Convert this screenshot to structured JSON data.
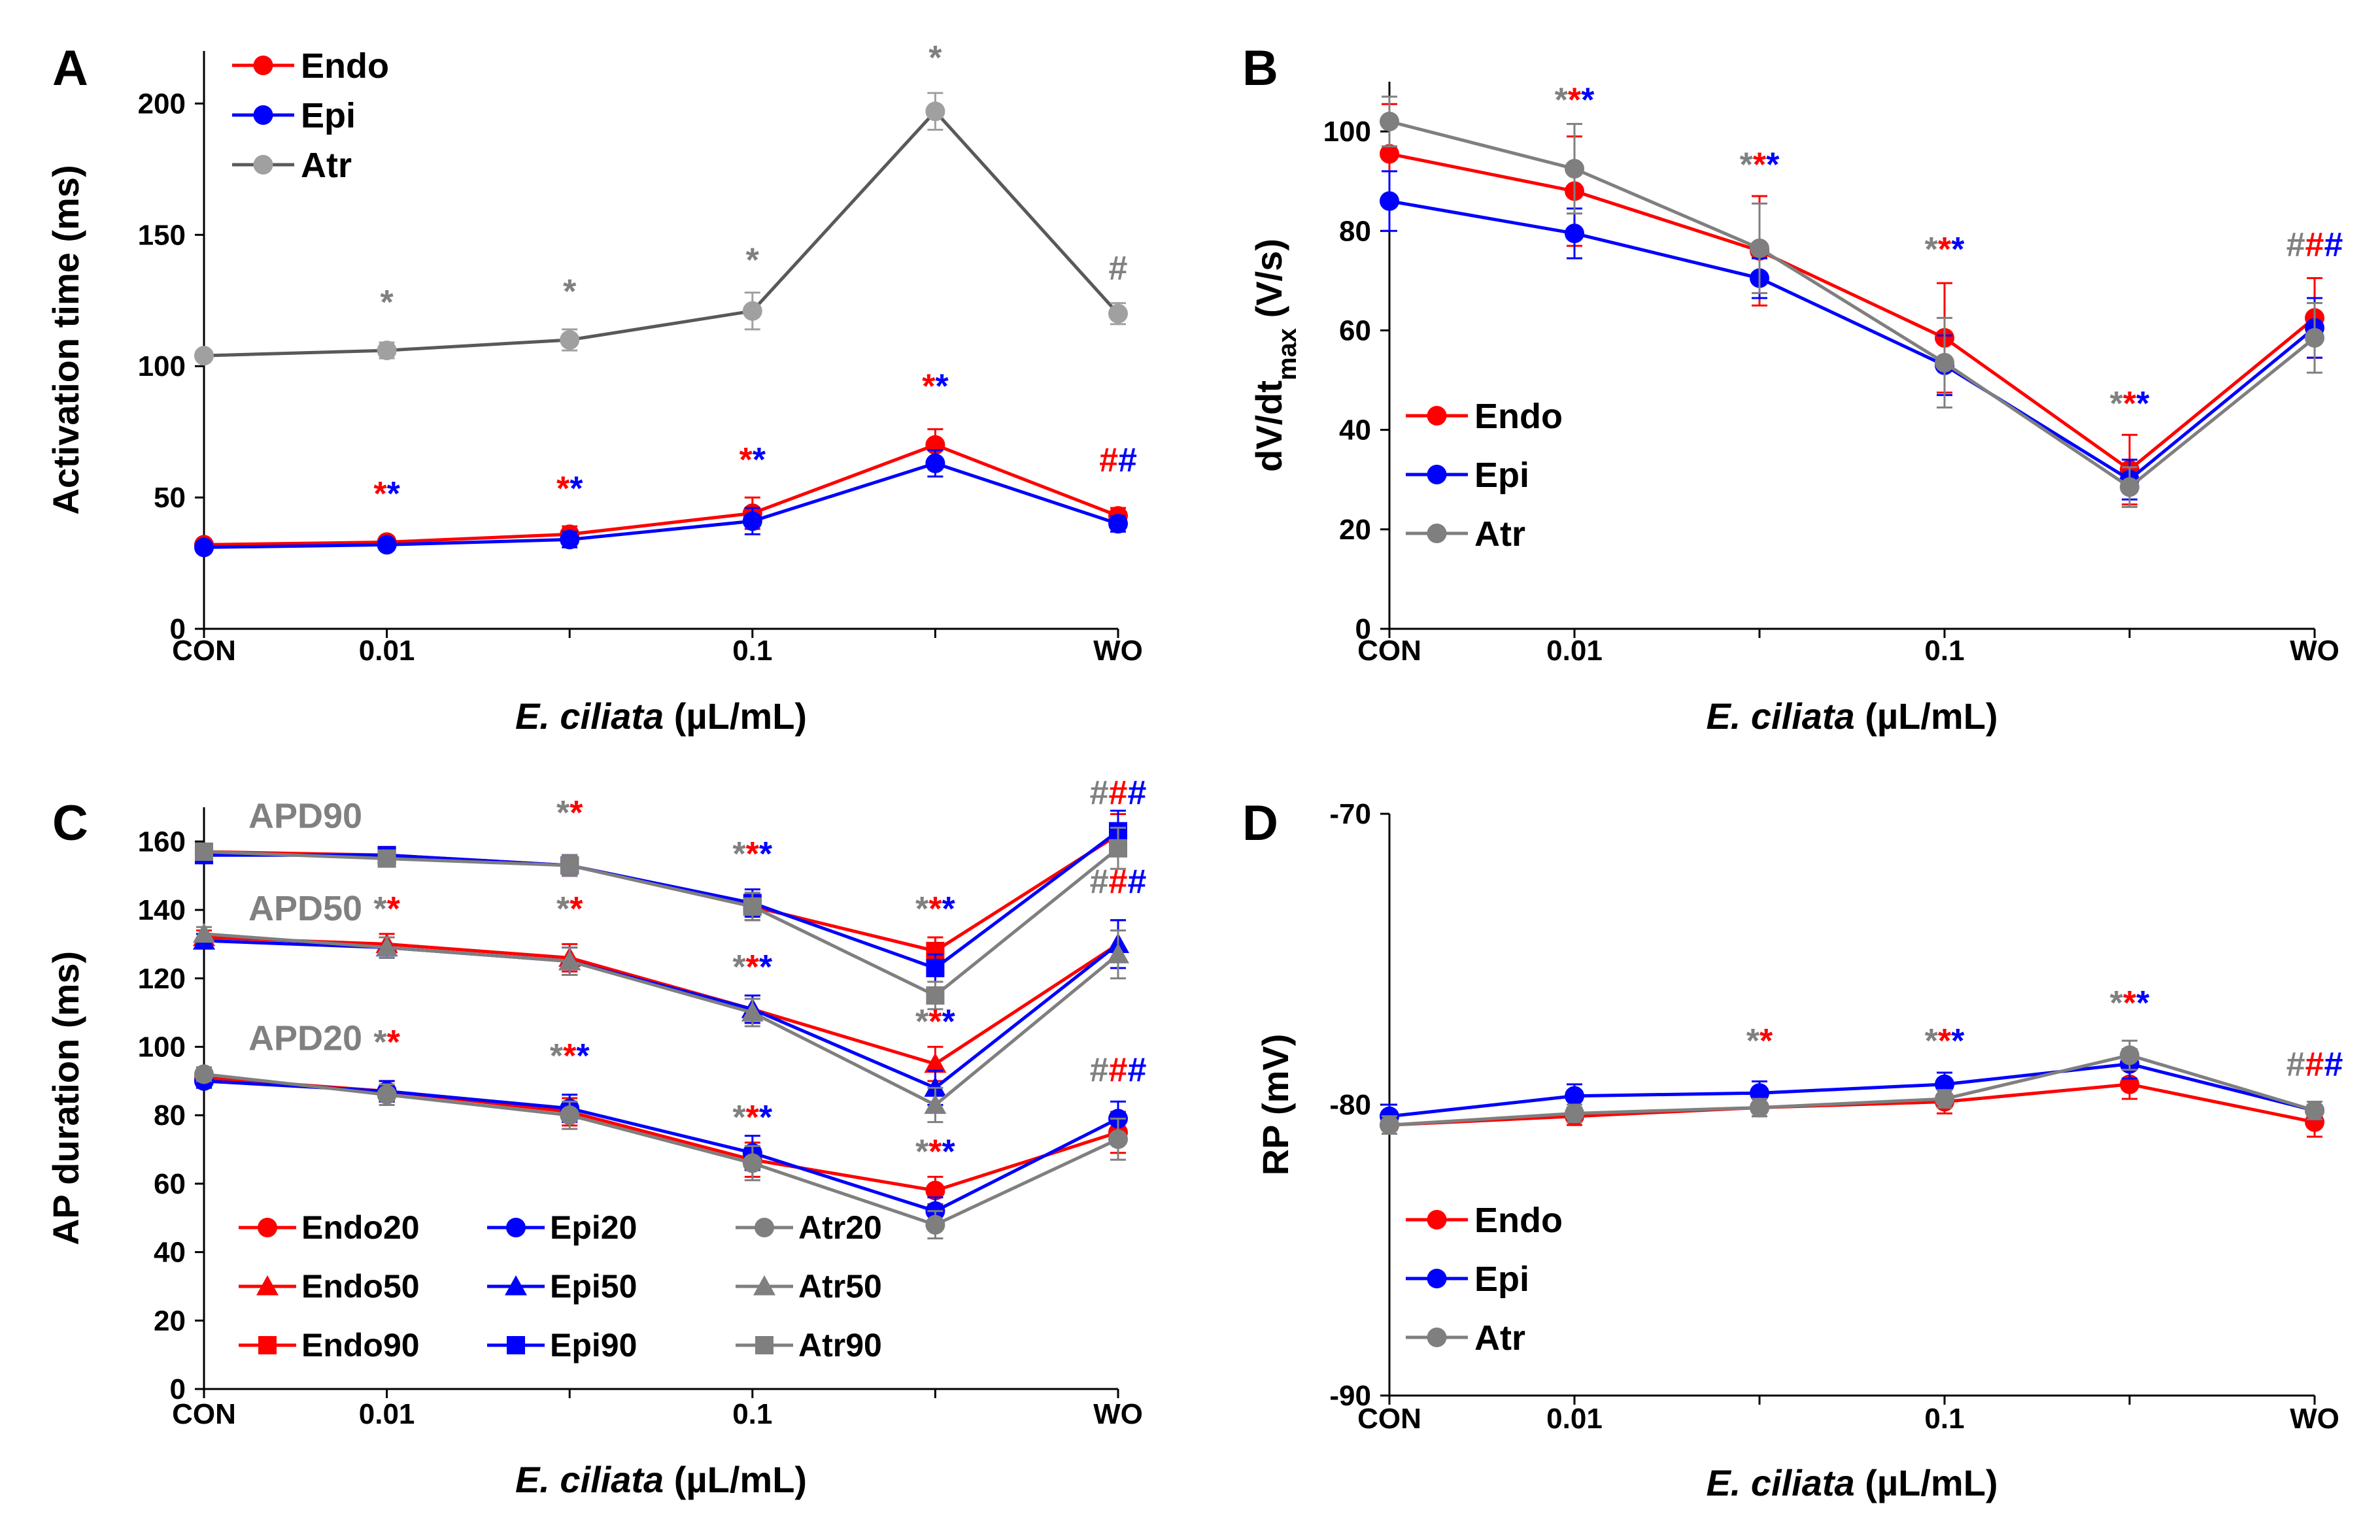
{
  "colors": {
    "endo": "#ff0000",
    "epi": "#0000ff",
    "atr_a": "#a0a0a0",
    "atr": "#7f7f7f",
    "axis": "#000000"
  },
  "chart_data": [
    {
      "panel": "A",
      "type": "line",
      "categories": [
        "CON",
        "0.01",
        "",
        "0.1",
        "",
        "WO"
      ],
      "xlabel_italic": "E. ciliata",
      "xlabel_rest": " (µL/mL)",
      "ylabel": "Activation time (ms)",
      "ylim": [
        0,
        220
      ],
      "yticks": [
        "0",
        "50",
        "100",
        "150",
        "200"
      ],
      "legend_position": "top-left",
      "series": [
        {
          "name": "Endo",
          "color": "#ff0000",
          "marker": "circle",
          "values": [
            32,
            33,
            36,
            44,
            70,
            43
          ],
          "errors": [
            2,
            2,
            3,
            6,
            6,
            3
          ]
        },
        {
          "name": "Epi",
          "color": "#0000ff",
          "marker": "circle",
          "values": [
            31,
            32,
            34,
            41,
            63,
            40
          ],
          "errors": [
            2,
            2,
            3,
            5,
            5,
            3
          ]
        },
        {
          "name": "Atr",
          "color": "#a0a0a0",
          "line_color": "#595959",
          "marker": "circle",
          "values": [
            104,
            106,
            110,
            121,
            197,
            120
          ],
          "errors": [
            2,
            3,
            4,
            7,
            7,
            4
          ]
        }
      ],
      "annotations": [
        {
          "x": 1,
          "y": 120,
          "parts": [
            {
              "text": "*",
              "color": "#808080"
            }
          ]
        },
        {
          "x": 2,
          "y": 124,
          "parts": [
            {
              "text": "*",
              "color": "#808080"
            }
          ]
        },
        {
          "x": 3,
          "y": 136,
          "parts": [
            {
              "text": "*",
              "color": "#808080"
            }
          ]
        },
        {
          "x": 4,
          "y": 213,
          "parts": [
            {
              "text": "*",
              "color": "#808080"
            }
          ]
        },
        {
          "x": 5,
          "y": 133,
          "parts": [
            {
              "text": "#",
              "color": "#808080"
            }
          ]
        },
        {
          "x": 1,
          "y": 47,
          "parts": [
            {
              "text": "*",
              "color": "#ff0000"
            },
            {
              "text": "*",
              "color": "#0000ff"
            }
          ]
        },
        {
          "x": 2,
          "y": 49,
          "parts": [
            {
              "text": "*",
              "color": "#ff0000"
            },
            {
              "text": "*",
              "color": "#0000ff"
            }
          ]
        },
        {
          "x": 3,
          "y": 60,
          "parts": [
            {
              "text": "*",
              "color": "#ff0000"
            },
            {
              "text": "*",
              "color": "#0000ff"
            }
          ]
        },
        {
          "x": 4,
          "y": 88,
          "parts": [
            {
              "text": "*",
              "color": "#ff0000"
            },
            {
              "text": "*",
              "color": "#0000ff"
            }
          ]
        },
        {
          "x": 5,
          "y": 60,
          "parts": [
            {
              "text": "#",
              "color": "#ff0000"
            },
            {
              "text": "#",
              "color": "#0000ff"
            }
          ]
        }
      ]
    },
    {
      "panel": "B",
      "type": "line",
      "categories": [
        "CON",
        "0.01",
        "",
        "0.1",
        "",
        "WO"
      ],
      "xlabel_italic": "E. ciliata",
      "xlabel_rest": " (µL/mL)",
      "ylabel": "dV/dt",
      "ylabel_sub": "max",
      "ylabel_rest": " (V/s)",
      "ylim": [
        0,
        110
      ],
      "yticks": [
        "0",
        "20",
        "40",
        "60",
        "80",
        "100"
      ],
      "legend_position": "middle-left",
      "series": [
        {
          "name": "Endo",
          "color": "#ff0000",
          "marker": "circle",
          "values": [
            95.5,
            88,
            76,
            58.5,
            32,
            62.5
          ],
          "errors": [
            10,
            11,
            11,
            11,
            7,
            8
          ]
        },
        {
          "name": "Epi",
          "color": "#0000ff",
          "marker": "circle",
          "values": [
            86,
            79.5,
            70.5,
            53,
            30,
            60.5
          ],
          "errors": [
            6,
            5,
            4,
            6,
            4,
            6
          ]
        },
        {
          "name": "Atr",
          "color": "#7f7f7f",
          "marker": "circle",
          "values": [
            102,
            92.5,
            76.5,
            53.5,
            28.5,
            58.5
          ],
          "errors": [
            5,
            9,
            9,
            9,
            4,
            7
          ]
        }
      ],
      "annotations": [
        {
          "x": 1,
          "y": 104,
          "parts": [
            {
              "text": "*",
              "color": "#808080"
            },
            {
              "text": "*",
              "color": "#ff0000"
            },
            {
              "text": "*",
              "color": "#0000ff"
            }
          ]
        },
        {
          "x": 2,
          "y": 91,
          "parts": [
            {
              "text": "*",
              "color": "#808080"
            },
            {
              "text": "*",
              "color": "#ff0000"
            },
            {
              "text": "*",
              "color": "#0000ff"
            }
          ]
        },
        {
          "x": 3,
          "y": 74,
          "parts": [
            {
              "text": "*",
              "color": "#808080"
            },
            {
              "text": "*",
              "color": "#ff0000"
            },
            {
              "text": "*",
              "color": "#0000ff"
            }
          ]
        },
        {
          "x": 4,
          "y": 43,
          "parts": [
            {
              "text": "*",
              "color": "#808080"
            },
            {
              "text": "*",
              "color": "#ff0000"
            },
            {
              "text": "*",
              "color": "#0000ff"
            }
          ]
        },
        {
          "x": 5,
          "y": 75,
          "parts": [
            {
              "text": "#",
              "color": "#808080"
            },
            {
              "text": "#",
              "color": "#ff0000"
            },
            {
              "text": "#",
              "color": "#0000ff"
            }
          ]
        }
      ]
    },
    {
      "panel": "C",
      "type": "line",
      "categories": [
        "CON",
        "0.01",
        "",
        "0.1",
        "",
        "WO"
      ],
      "xlabel_italic": "E. ciliata",
      "xlabel_rest": " (µL/mL)",
      "ylabel": "AP duration (ms)",
      "ylim": [
        0,
        170
      ],
      "yticks": [
        "0",
        "20",
        "40",
        "60",
        "80",
        "100",
        "120",
        "140",
        "160"
      ],
      "legend_position": "bottom-left",
      "group_labels": [
        {
          "text": "APD90",
          "x": 0.1,
          "y": 164
        },
        {
          "text": "APD50",
          "x": 0.1,
          "y": 137
        },
        {
          "text": "APD20",
          "x": 0.1,
          "y": 99
        }
      ],
      "series": [
        {
          "name": "Endo20",
          "color": "#ff0000",
          "marker": "circle",
          "values": [
            91,
            87,
            81,
            67,
            58,
            75
          ],
          "errors": [
            2,
            3,
            4,
            5,
            4,
            6
          ]
        },
        {
          "name": "Epi20",
          "color": "#0000ff",
          "marker": "circle",
          "values": [
            90,
            87,
            82,
            69,
            52,
            79
          ],
          "errors": [
            2,
            3,
            4,
            5,
            4,
            5
          ]
        },
        {
          "name": "Atr20",
          "color": "#7f7f7f",
          "marker": "circle",
          "values": [
            92,
            86,
            80,
            66,
            48,
            73
          ],
          "errors": [
            2,
            3,
            4,
            5,
            4,
            6
          ]
        },
        {
          "name": "Endo50",
          "color": "#ff0000",
          "marker": "triangle",
          "values": [
            132,
            130,
            126,
            111,
            95,
            130
          ],
          "errors": [
            2,
            3,
            4,
            4,
            5,
            7
          ]
        },
        {
          "name": "Epi50",
          "color": "#0000ff",
          "marker": "triangle",
          "values": [
            131,
            129,
            125,
            111,
            88,
            130
          ],
          "errors": [
            2,
            3,
            4,
            4,
            5,
            7
          ]
        },
        {
          "name": "Atr50",
          "color": "#7f7f7f",
          "marker": "triangle",
          "values": [
            133,
            129,
            125,
            110,
            83,
            127
          ],
          "errors": [
            2,
            3,
            4,
            4,
            5,
            7
          ]
        },
        {
          "name": "Endo90",
          "color": "#ff0000",
          "marker": "square",
          "values": [
            157,
            156,
            153,
            141,
            128,
            162
          ],
          "errors": [
            2,
            2,
            3,
            4,
            4,
            6
          ]
        },
        {
          "name": "Epi90",
          "color": "#0000ff",
          "marker": "square",
          "values": [
            156,
            156,
            153,
            142,
            123,
            163
          ],
          "errors": [
            2,
            2,
            3,
            4,
            4,
            6
          ]
        },
        {
          "name": "Atr90",
          "color": "#7f7f7f",
          "marker": "square",
          "values": [
            157,
            155,
            153,
            141,
            115,
            158
          ],
          "errors": [
            2,
            2,
            3,
            4,
            4,
            6
          ]
        }
      ],
      "annotations": [
        {
          "x": 2,
          "y": 165,
          "parts": [
            {
              "text": "*",
              "color": "#808080"
            },
            {
              "text": "*",
              "color": "#ff0000"
            }
          ]
        },
        {
          "x": 3,
          "y": 153,
          "parts": [
            {
              "text": "*",
              "color": "#808080"
            },
            {
              "text": "*",
              "color": "#ff0000"
            },
            {
              "text": "*",
              "color": "#0000ff"
            }
          ]
        },
        {
          "x": 4,
          "y": 137,
          "parts": [
            {
              "text": "*",
              "color": "#808080"
            },
            {
              "text": "*",
              "color": "#ff0000"
            },
            {
              "text": "*",
              "color": "#0000ff"
            }
          ]
        },
        {
          "x": 5,
          "y": 171,
          "parts": [
            {
              "text": "#",
              "color": "#808080"
            },
            {
              "text": "#",
              "color": "#ff0000"
            },
            {
              "text": "#",
              "color": "#0000ff"
            }
          ]
        },
        {
          "x": 1,
          "y": 137,
          "parts": [
            {
              "text": "*",
              "color": "#808080"
            },
            {
              "text": "*",
              "color": "#ff0000"
            }
          ]
        },
        {
          "x": 2,
          "y": 137,
          "parts": [
            {
              "text": "*",
              "color": "#808080"
            },
            {
              "text": "*",
              "color": "#ff0000"
            }
          ]
        },
        {
          "x": 3,
          "y": 120,
          "parts": [
            {
              "text": "*",
              "color": "#808080"
            },
            {
              "text": "*",
              "color": "#ff0000"
            },
            {
              "text": "*",
              "color": "#0000ff"
            }
          ]
        },
        {
          "x": 4,
          "y": 104,
          "parts": [
            {
              "text": "*",
              "color": "#808080"
            },
            {
              "text": "*",
              "color": "#ff0000"
            },
            {
              "text": "*",
              "color": "#0000ff"
            }
          ]
        },
        {
          "x": 5,
          "y": 145,
          "parts": [
            {
              "text": "#",
              "color": "#808080"
            },
            {
              "text": "#",
              "color": "#ff0000"
            },
            {
              "text": "#",
              "color": "#0000ff"
            }
          ]
        },
        {
          "x": 1,
          "y": 98,
          "parts": [
            {
              "text": "*",
              "color": "#808080"
            },
            {
              "text": "*",
              "color": "#ff0000"
            }
          ]
        },
        {
          "x": 2,
          "y": 94,
          "parts": [
            {
              "text": "*",
              "color": "#808080"
            },
            {
              "text": "*",
              "color": "#ff0000"
            },
            {
              "text": "*",
              "color": "#0000ff"
            }
          ]
        },
        {
          "x": 3,
          "y": 76,
          "parts": [
            {
              "text": "*",
              "color": "#808080"
            },
            {
              "text": "*",
              "color": "#ff0000"
            },
            {
              "text": "*",
              "color": "#0000ff"
            }
          ]
        },
        {
          "x": 4,
          "y": 66,
          "parts": [
            {
              "text": "*",
              "color": "#808080"
            },
            {
              "text": "*",
              "color": "#ff0000"
            },
            {
              "text": "*",
              "color": "#0000ff"
            }
          ]
        },
        {
          "x": 5,
          "y": 90,
          "parts": [
            {
              "text": "#",
              "color": "#808080"
            },
            {
              "text": "#",
              "color": "#ff0000"
            },
            {
              "text": "#",
              "color": "#0000ff"
            }
          ]
        }
      ]
    },
    {
      "panel": "D",
      "type": "line",
      "categories": [
        "CON",
        "0.01",
        "",
        "0.1",
        "",
        "WO"
      ],
      "xlabel_italic": "E. ciliata",
      "xlabel_rest": " (µL/mL)",
      "ylabel": "RP (mV)",
      "ylim": [
        -90,
        -70
      ],
      "yticks": [
        "-90",
        "-80",
        "-70"
      ],
      "legend_position": "bottom-left",
      "series": [
        {
          "name": "Endo",
          "color": "#ff0000",
          "marker": "circle",
          "values": [
            -80.7,
            -80.4,
            -80.1,
            -79.9,
            -79.3,
            -80.6
          ],
          "errors": [
            0.3,
            0.3,
            0.3,
            0.4,
            0.5,
            0.5
          ]
        },
        {
          "name": "Epi",
          "color": "#0000ff",
          "marker": "circle",
          "values": [
            -80.4,
            -79.7,
            -79.6,
            -79.3,
            -78.6,
            -80.2
          ],
          "errors": [
            0.4,
            0.4,
            0.4,
            0.4,
            0.5,
            0.3
          ]
        },
        {
          "name": "Atr",
          "color": "#7f7f7f",
          "marker": "circle",
          "values": [
            -80.7,
            -80.3,
            -80.1,
            -79.8,
            -78.3,
            -80.2
          ],
          "errors": [
            0.3,
            0.3,
            0.3,
            0.3,
            0.5,
            0.3
          ]
        }
      ],
      "annotations": [
        {
          "x": 2,
          "y": -78.2,
          "parts": [
            {
              "text": "*",
              "color": "#808080"
            },
            {
              "text": "*",
              "color": "#ff0000"
            }
          ]
        },
        {
          "x": 3,
          "y": -78.2,
          "parts": [
            {
              "text": "*",
              "color": "#808080"
            },
            {
              "text": "*",
              "color": "#ff0000"
            },
            {
              "text": "*",
              "color": "#0000ff"
            }
          ]
        },
        {
          "x": 4,
          "y": -76.9,
          "parts": [
            {
              "text": "*",
              "color": "#808080"
            },
            {
              "text": "*",
              "color": "#ff0000"
            },
            {
              "text": "*",
              "color": "#0000ff"
            }
          ]
        },
        {
          "x": 5,
          "y": -79.0,
          "parts": [
            {
              "text": "#",
              "color": "#808080"
            },
            {
              "text": "#",
              "color": "#ff0000"
            },
            {
              "text": "#",
              "color": "#0000ff"
            }
          ]
        }
      ]
    }
  ]
}
